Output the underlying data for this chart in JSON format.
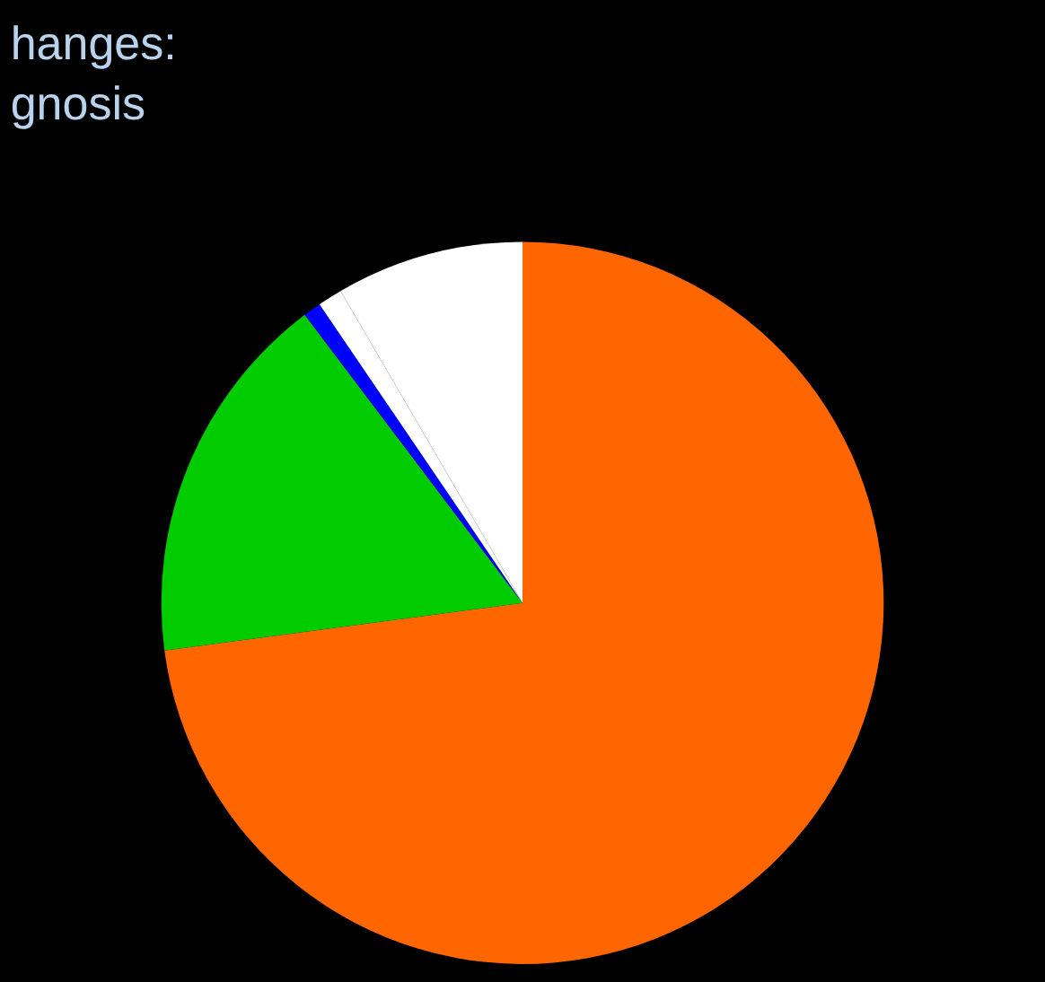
{
  "chart_data": {
    "type": "pie",
    "title": "hanges:\ngnosis",
    "categories": [
      null,
      null,
      null,
      null,
      null
    ],
    "values": [
      72.9,
      16.8,
      0.8,
      1.1,
      8.4
    ],
    "colors": [
      "#ff6600",
      "#00cc00",
      "#0000ff",
      "#ffffff",
      "#ffffff"
    ],
    "legend": false
  }
}
